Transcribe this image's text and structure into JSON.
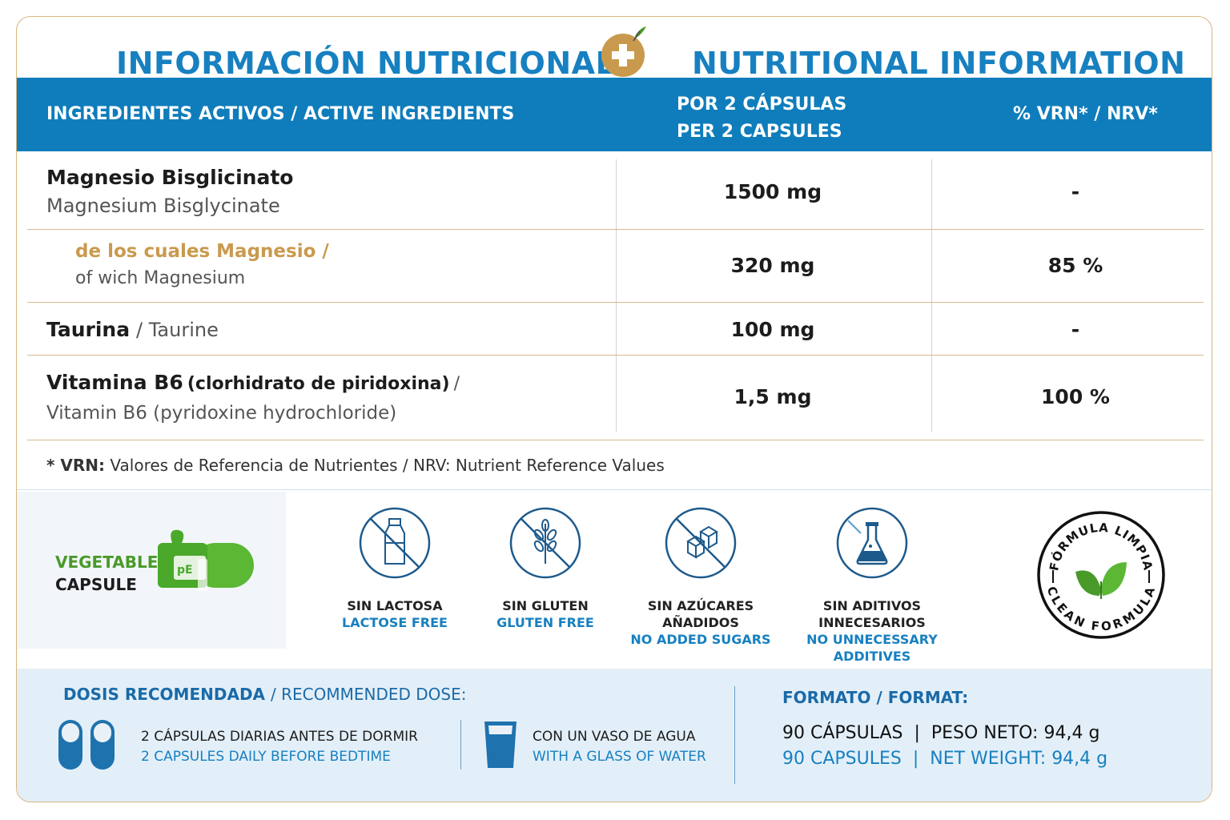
{
  "header": {
    "title_es": "INFORMACIÓN NUTRICIONAL",
    "title_en": "NUTRITIONAL INFORMATION"
  },
  "table": {
    "col_ingredients": "INGREDIENTES ACTIVOS / ACTIVE INGREDIENTS",
    "col_per_line1": "POR 2 CÁPSULAS",
    "col_per_line2": "PER 2 CAPSULES",
    "col_nrv": "% VRN* / NRV*",
    "rows": [
      {
        "name_es": "Magnesio Bisglicinato",
        "name_en": "Magnesium Bisglycinate",
        "amount": "1500 mg",
        "nrv": "-"
      },
      {
        "name_es": "de los cuales Magnesio /",
        "name_en": "of wich Magnesium",
        "amount": "320 mg",
        "nrv": "85 %"
      },
      {
        "name_es": "Taurina",
        "name_en": "/ Taurine",
        "amount": "100 mg",
        "nrv": "-"
      },
      {
        "name_es": "Vitamina B6",
        "name_es_extra": "(clorhidrato de piridoxina)",
        "name_es_slash": "/",
        "name_en": "Vitamin B6 (pyridoxine hydrochloride)",
        "amount": "1,5 mg",
        "nrv": "100 %"
      }
    ],
    "footnote_star": "* VRN:",
    "footnote_text": "Valores de Referencia de Nutrientes / NRV: Nutrient Reference Values"
  },
  "features": {
    "vegetable_line1": "VEGETABLE",
    "vegetable_line2": "CAPSULE",
    "items": [
      {
        "es": "SIN LACTOSA",
        "en": "LACTOSE FREE",
        "icon": "no-milk-bottle-icon"
      },
      {
        "es": "SIN GLUTEN",
        "en": "GLUTEN FREE",
        "icon": "no-wheat-icon"
      },
      {
        "es": "SIN AZÚCARES AÑADIDOS",
        "en": "NO ADDED SUGARS",
        "icon": "no-sugar-cubes-icon"
      },
      {
        "es": "SIN ADITIVOS INNECESARIOS",
        "en": "NO UNNECESSARY ADDITIVES",
        "icon": "flask-icon"
      }
    ],
    "clean_top": "FÓRMULA LIMPIA",
    "clean_bottom": "CLEAN FORMULA"
  },
  "dose": {
    "heading_es": "DOSIS RECOMENDADA",
    "heading_en": "/ RECOMMENDED DOSE:",
    "caps_es": "2 CÁPSULAS DIARIAS ANTES DE DORMIR",
    "caps_en": "2 CAPSULES DAILY BEFORE BEDTIME",
    "water_es": "CON UN VASO DE AGUA",
    "water_en": "WITH A GLASS OF WATER"
  },
  "format": {
    "heading": "FORMATO / FORMAT:",
    "line_es": "90 CÁPSULAS  |  PESO NETO: 94,4 g",
    "line_en": "90 CAPSULES  |  NET WEIGHT: 94,4 g"
  },
  "colors": {
    "blue": "#0f7dbb",
    "gold": "#c99a4e",
    "green": "#4a9a2a",
    "light_blue_bg": "#e3eff8"
  }
}
